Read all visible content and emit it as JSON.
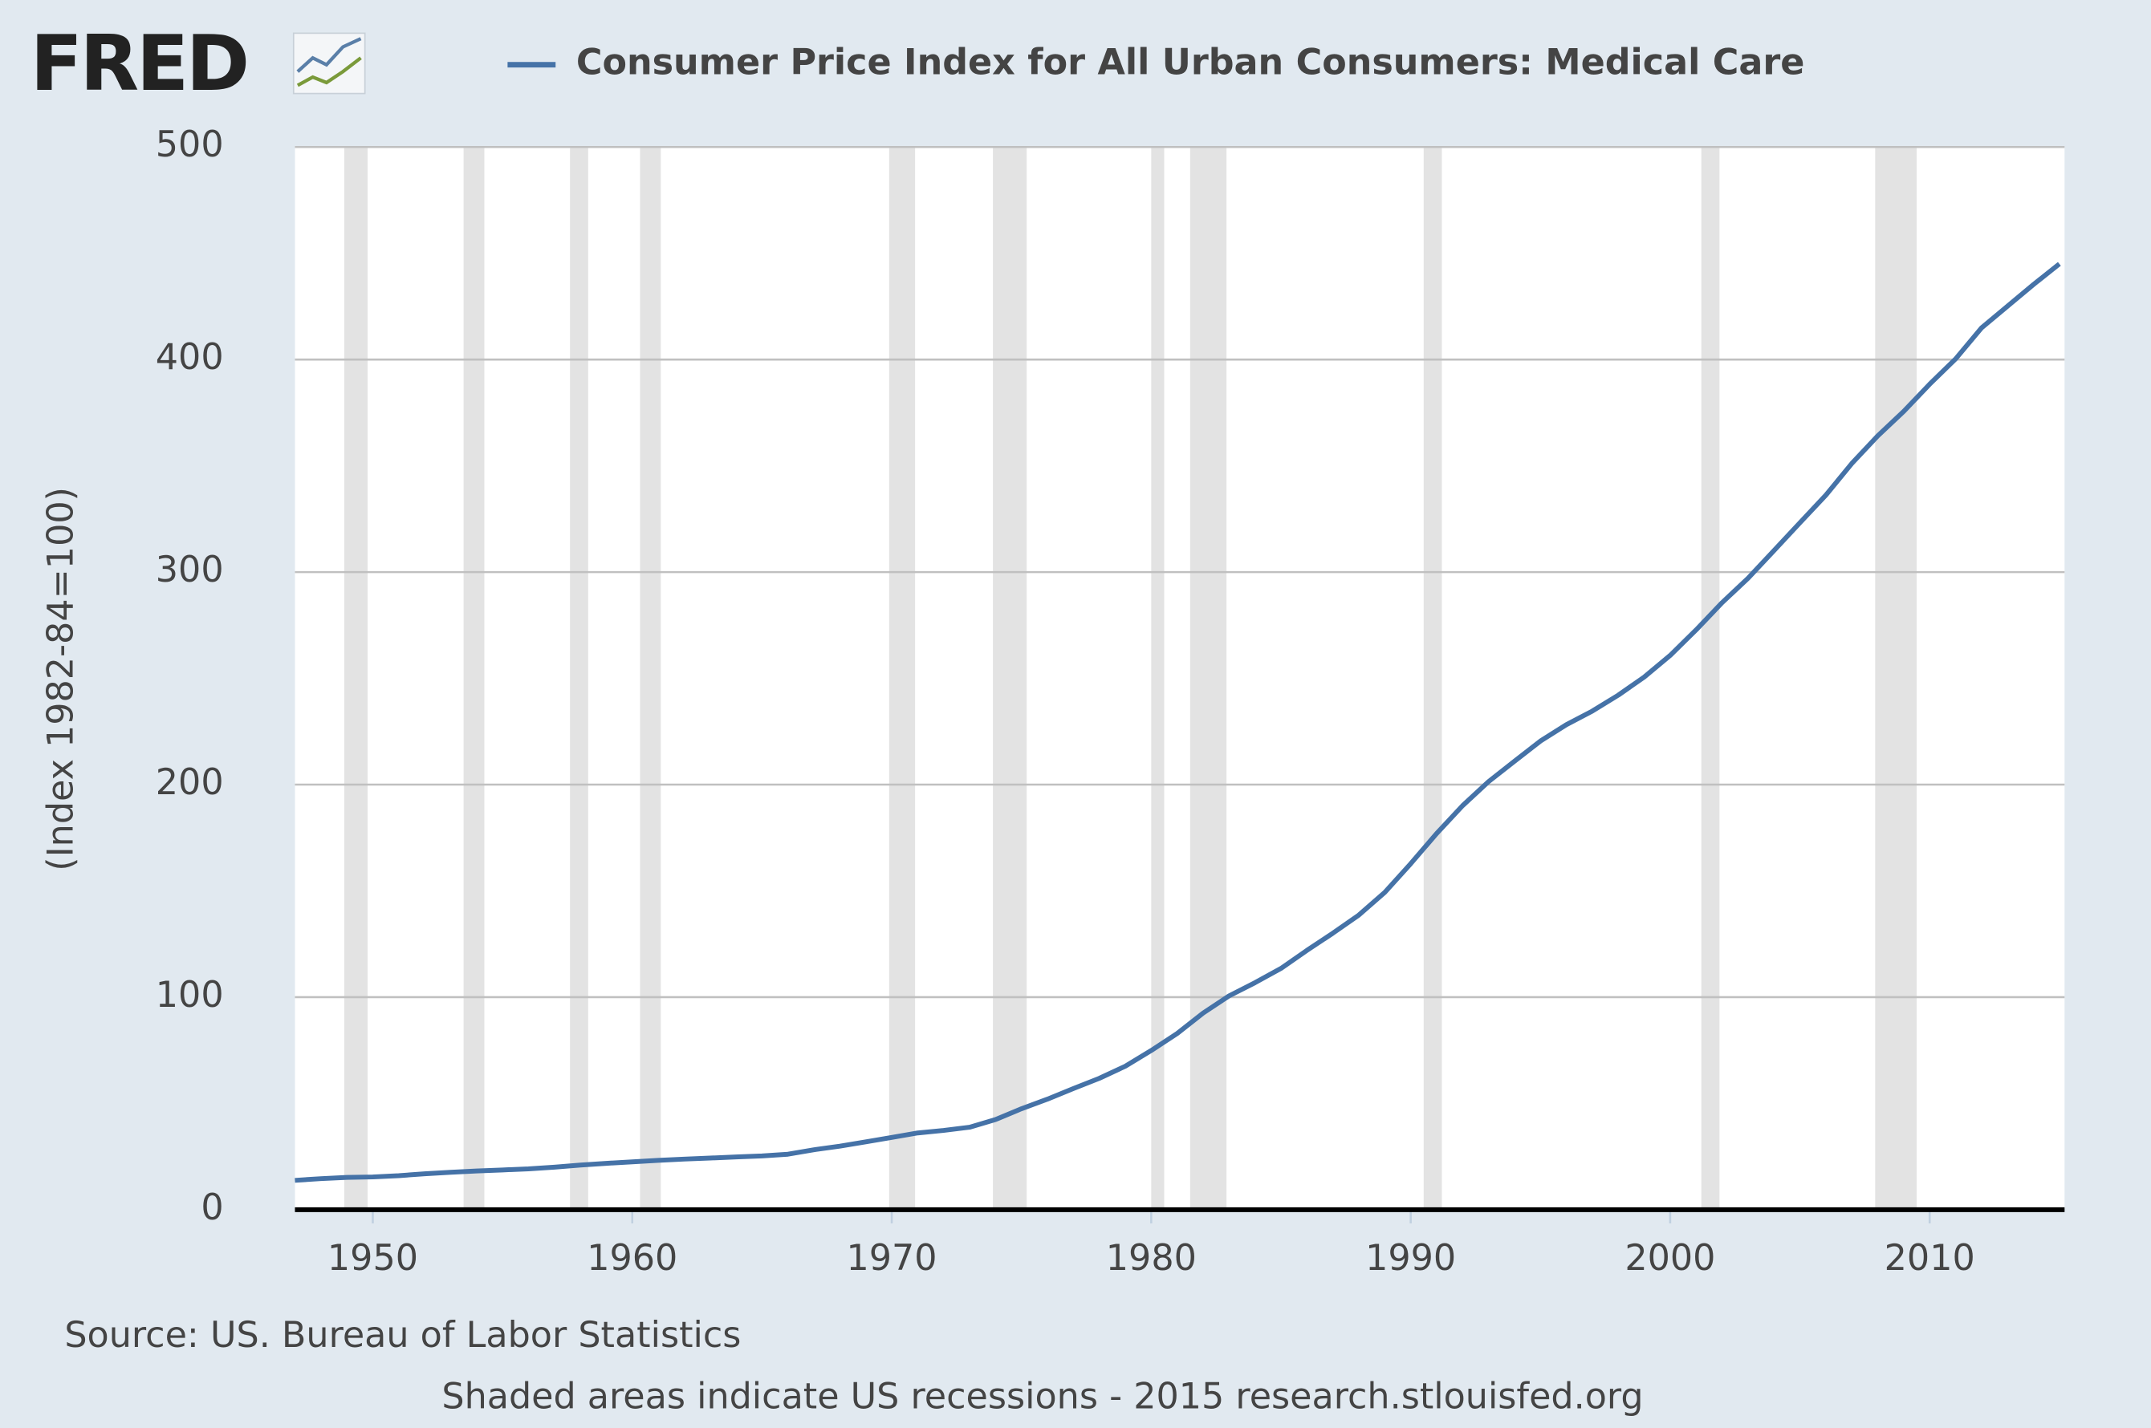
{
  "logo": "FRED",
  "chart_data": {
    "type": "line",
    "source": "Source: US. Bureau of Labor Statistics",
    "footer": "Shaded areas indicate US recessions - 2015 research.stlouisfed.org",
    "ylabel": "(Index 1982-84=100)",
    "x": [
      1947,
      1948,
      1949,
      1950,
      1951,
      1952,
      1953,
      1954,
      1955,
      1956,
      1957,
      1958,
      1959,
      1960,
      1961,
      1962,
      1963,
      1964,
      1965,
      1966,
      1967,
      1968,
      1969,
      1970,
      1971,
      1972,
      1973,
      1974,
      1975,
      1976,
      1977,
      1978,
      1979,
      1980,
      1981,
      1982,
      1983,
      1984,
      1985,
      1986,
      1987,
      1988,
      1989,
      1990,
      1991,
      1992,
      1993,
      1994,
      1995,
      1996,
      1997,
      1998,
      1999,
      2000,
      2001,
      2002,
      2003,
      2004,
      2005,
      2006,
      2007,
      2008,
      2009,
      2010,
      2011,
      2012,
      2013,
      2014,
      2015
    ],
    "series": [
      {
        "name": "Consumer Price Index for All Urban Consumers: Medical Care",
        "color": "#4572a7",
        "values": [
          13.8,
          14.6,
          15.2,
          15.4,
          16.0,
          16.9,
          17.6,
          18.2,
          18.7,
          19.2,
          20.0,
          21.0,
          21.8,
          22.5,
          23.2,
          23.8,
          24.3,
          24.8,
          25.3,
          26.1,
          28.2,
          29.9,
          31.9,
          34.0,
          36.1,
          37.3,
          38.8,
          42.4,
          47.5,
          52.0,
          57.0,
          61.8,
          67.5,
          74.9,
          82.9,
          92.5,
          100.6,
          106.8,
          113.5,
          122.0,
          130.1,
          138.6,
          149.3,
          162.8,
          177.0,
          190.1,
          201.4,
          211.0,
          220.5,
          228.2,
          234.6,
          242.1,
          250.6,
          260.8,
          272.8,
          285.6,
          297.1,
          310.1,
          323.2,
          336.2,
          351.1,
          364.1,
          375.6,
          388.4,
          400.3,
          414.9,
          425.1,
          435.3,
          445.0
        ]
      }
    ],
    "recessions": [
      [
        1948.9,
        1949.8
      ],
      [
        1953.5,
        1954.3
      ],
      [
        1957.6,
        1958.3
      ],
      [
        1960.3,
        1961.1
      ],
      [
        1969.9,
        1970.9
      ],
      [
        1973.9,
        1975.2
      ],
      [
        1980.0,
        1980.5
      ],
      [
        1981.5,
        1982.9
      ],
      [
        1990.5,
        1991.2
      ],
      [
        2001.2,
        2001.9
      ],
      [
        2007.9,
        2009.5
      ]
    ],
    "xlim": [
      1947,
      2015.2
    ],
    "ylim": [
      0,
      500
    ],
    "xticks": [
      1950,
      1960,
      1970,
      1980,
      1990,
      2000,
      2010
    ],
    "yticks": [
      0,
      100,
      200,
      300,
      400,
      500
    ],
    "grid": true
  }
}
